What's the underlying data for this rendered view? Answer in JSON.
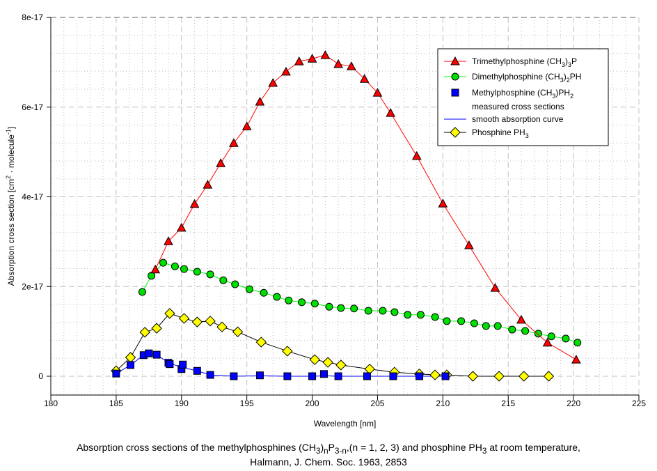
{
  "chart_data": {
    "type": "line",
    "title": "",
    "xlabel": "Wavelength [nm]",
    "ylabel": "Absorption cross section [cm² · molecule⁻¹]",
    "ylabel_parts": {
      "base": "Absorption cross section [cm",
      "sup1": "2",
      "mid": " · molecule",
      "sup2": "-1",
      "end": "]"
    },
    "xlim": [
      180,
      225
    ],
    "ylim": [
      -4.2e-18,
      8e-17
    ],
    "x_ticks": [
      180,
      185,
      190,
      195,
      200,
      205,
      210,
      215,
      220,
      225
    ],
    "x_tick_labels": [
      "180",
      "185",
      "190",
      "195",
      "200",
      "205",
      "210",
      "215",
      "220",
      "225"
    ],
    "y_ticks": [
      0,
      2e-17,
      4e-17,
      6e-17,
      8e-17
    ],
    "y_tick_labels": [
      "0",
      "2e-17",
      "4e-17",
      "6e-17",
      "8e-17"
    ],
    "grid": true,
    "legend_position": "top-right",
    "series": [
      {
        "name": "Trimethylphosphine (CH3)3P",
        "legend": {
          "base": "Trimethylphosphine (CH",
          "sub1": "3",
          "mid": ")",
          "sub2": "3",
          "end": "P"
        },
        "color": "#ff0000",
        "marker": "triangle",
        "marker_color": "#ff0000",
        "x": [
          188,
          189,
          190,
          191,
          192,
          193,
          194,
          195,
          196,
          197,
          198,
          199,
          200,
          201,
          202,
          203,
          204,
          205,
          206,
          208,
          210,
          212,
          214,
          216,
          218,
          220.2
        ],
        "y": [
          2.38e-17,
          3.01e-17,
          3.31e-17,
          3.84e-17,
          4.27e-17,
          4.75e-17,
          5.2e-17,
          5.57e-17,
          6.12e-17,
          6.54e-17,
          6.79e-17,
          7.02e-17,
          7.08e-17,
          7.16e-17,
          6.96e-17,
          6.91e-17,
          6.63e-17,
          6.32e-17,
          5.87e-17,
          4.91e-17,
          3.85e-17,
          2.92e-17,
          1.97e-17,
          1.26e-17,
          7.5e-18,
          3.7e-18
        ]
      },
      {
        "name": "Dimethylphosphine (CH3)2PH",
        "legend": {
          "base": "Dimethylphosphine (CH",
          "sub1": "3",
          "mid": ")",
          "sub2": "2",
          "end": "PH"
        },
        "color": "#00ff00",
        "marker": "circle",
        "marker_color": "#00e000",
        "x": [
          187,
          187.7,
          188.6,
          189.5,
          190.2,
          191.2,
          192.2,
          193.2,
          194.1,
          195.2,
          196.3,
          197.3,
          198.2,
          199.2,
          200.2,
          201.3,
          202.2,
          203.2,
          204.3,
          205.4,
          206.3,
          207.3,
          208.3,
          209.4,
          210.3,
          211.4,
          212.4,
          213.3,
          214.2,
          215.3,
          216.3,
          217.3,
          218.3,
          219.4,
          220.3
        ],
        "y": [
          1.88e-17,
          2.24e-17,
          2.53e-17,
          2.45e-17,
          2.39e-17,
          2.33e-17,
          2.27e-17,
          2.14e-17,
          2.05e-17,
          1.94e-17,
          1.86e-17,
          1.77e-17,
          1.69e-17,
          1.65e-17,
          1.62e-17,
          1.55e-17,
          1.52e-17,
          1.51e-17,
          1.46e-17,
          1.46e-17,
          1.43e-17,
          1.37e-17,
          1.37e-17,
          1.32e-17,
          1.23e-17,
          1.23e-17,
          1.18e-17,
          1.12e-17,
          1.12e-17,
          1.04e-17,
          1.01e-17,
          9.5e-18,
          8.9e-18,
          8.4e-18,
          7.5e-18
        ]
      },
      {
        "name": "Methylphosphine (CH3)PH2 measured cross sections",
        "legend": {
          "base": "Methylphosphine (CH",
          "sub1": "3",
          "mid": ")PH",
          "sub2": "2",
          "end": "",
          "line2": "measured cross sections"
        },
        "color": "#0000ff",
        "marker": "square",
        "marker_color": "#0000ff",
        "line": false,
        "x": [
          185,
          186.1,
          187.1,
          187.5,
          188.1,
          189,
          189.1,
          190,
          190.1,
          191.2,
          192.2,
          194,
          196,
          198.1,
          200,
          200.9,
          202,
          204.2,
          206.2,
          208.2,
          210.2
        ],
        "y": [
          6e-19,
          2.5e-18,
          4.7e-18,
          5.1e-18,
          4.8e-18,
          3e-18,
          2.7e-18,
          1.6e-18,
          2.6e-18,
          1.2e-18,
          3e-19,
          0,
          2e-19,
          0,
          0,
          5e-19,
          0,
          0,
          0,
          0,
          0
        ]
      },
      {
        "name": "smooth absorption curve",
        "legend": {
          "base": "smooth absorption curve"
        },
        "color": "#0000ff",
        "marker": "none",
        "x": [
          185,
          186.1,
          187.1,
          187.5,
          188.1,
          189,
          190,
          191.2,
          192.2,
          194,
          196,
          198,
          200,
          201,
          202,
          204,
          206,
          208,
          210.2
        ],
        "y": [
          6e-19,
          2.5e-18,
          4.7e-18,
          5.1e-18,
          4.8e-18,
          3e-18,
          2e-18,
          1.2e-18,
          3e-19,
          0,
          1e-19,
          0,
          0,
          1e-19,
          0,
          0,
          0,
          0,
          0
        ]
      },
      {
        "name": "Phosphine PH3",
        "legend": {
          "base": "Phosphine PH",
          "sub1": "3"
        },
        "color": "#000000",
        "marker": "diamond",
        "marker_color": "#ffff00",
        "x": [
          185,
          186.1,
          187.2,
          188.1,
          189.1,
          190.2,
          191.2,
          192.2,
          193.1,
          194.3,
          196.1,
          198.1,
          200.2,
          201.2,
          202.2,
          204.4,
          206.3,
          208.2,
          209.4,
          210.3,
          212.3,
          214.3,
          216.2,
          218.1
        ],
        "y": [
          1.2e-18,
          4.2e-18,
          9.8e-18,
          1.07e-17,
          1.4e-17,
          1.29e-17,
          1.21e-17,
          1.23e-17,
          1.1e-17,
          9.9e-18,
          7.6e-18,
          5.6e-18,
          3.7e-18,
          3.1e-18,
          2.5e-18,
          1.6e-18,
          9e-19,
          5e-19,
          3e-19,
          3e-19,
          0,
          0,
          0,
          0
        ]
      }
    ]
  },
  "caption": {
    "line1": {
      "a": "Absorption cross sections of the methylphosphines (CH",
      "sub1": "3",
      "b": ")",
      "sub2": "n",
      "c": "P",
      "sub3": "3-n",
      "d": ",(n = 1, 2, 3) and phosphine PH",
      "sub4": "3",
      "e": " at room temperature,"
    },
    "line2": "Halmann, J. Chem. Soc. 1963, 2853"
  }
}
